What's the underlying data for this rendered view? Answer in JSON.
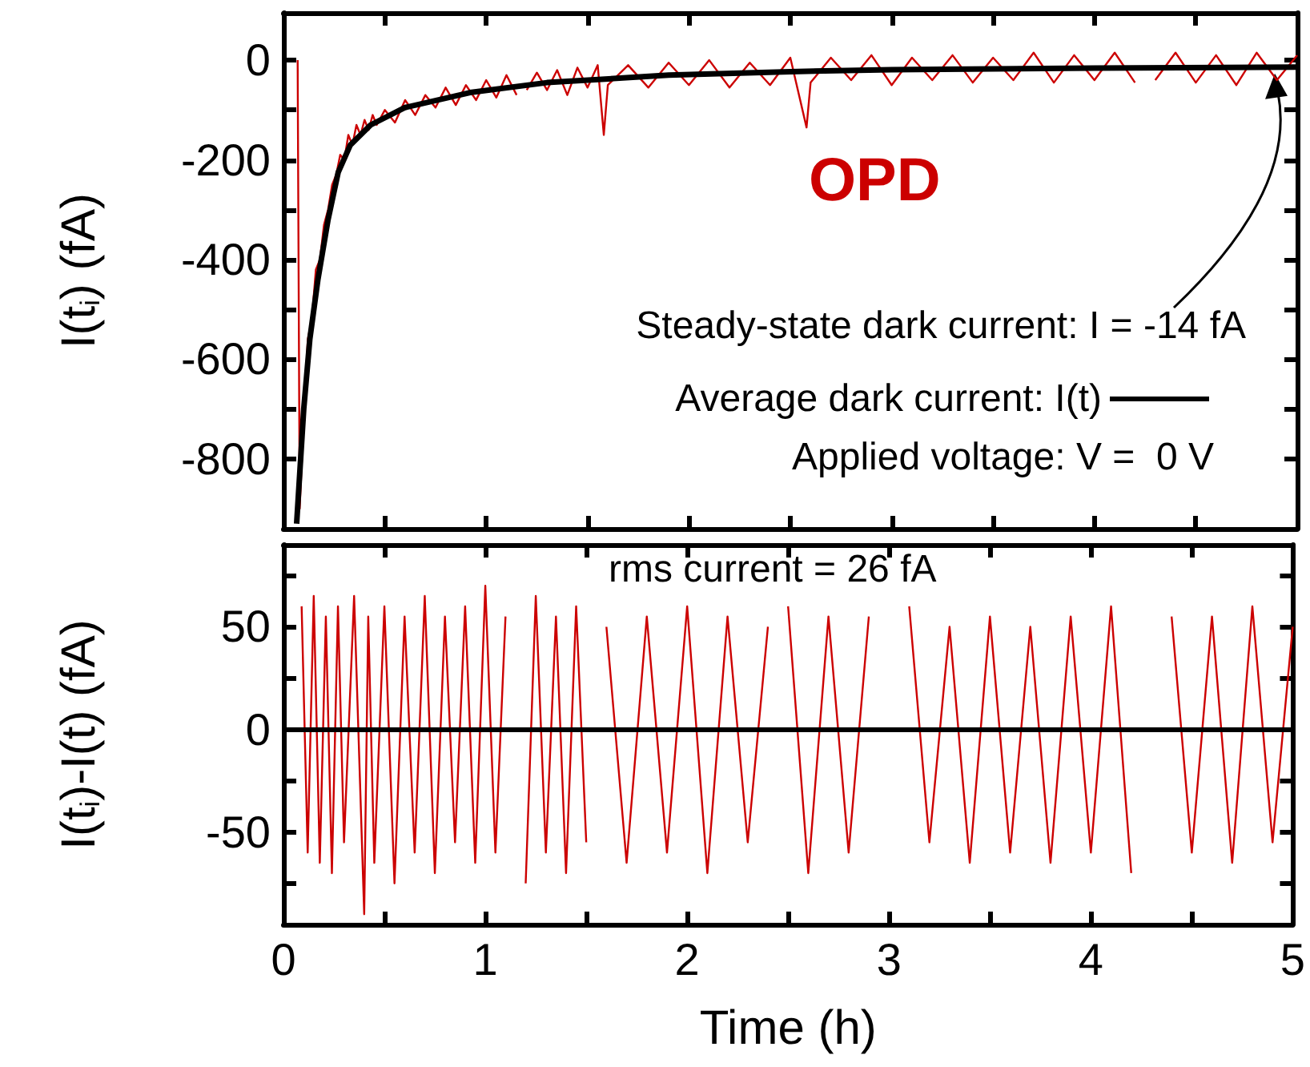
{
  "chart_data": [
    {
      "type": "line",
      "ylabel": "I(t$_{i}$) (fA)",
      "xlim": [
        0,
        5
      ],
      "xticks": [
        0,
        {
          "value": 0.5,
          "label": null
        },
        1,
        {
          "value": 1.5,
          "label": null
        },
        2,
        {
          "value": 2.5,
          "label": null
        },
        3,
        {
          "value": 3.5,
          "label": null
        },
        4,
        {
          "value": 4.5,
          "label": null
        },
        5
      ],
      "ylim": [
        -940,
        95
      ],
      "yticks": [
        -800,
        {
          "value": -700,
          "label": null
        },
        -600,
        {
          "value": -500,
          "label": null
        },
        -400,
        {
          "value": -300,
          "label": null
        },
        -200,
        {
          "value": -100,
          "label": null
        },
        0
      ],
      "tick_labels": "y",
      "marker": "none",
      "legend": "right",
      "annotations": [
        "OPD",
        "Steady-state dark current: I = -14 fA",
        "Applied voltage: V =  0 V"
      ],
      "series": [
        {
          "color": "#cc0000",
          "x": [
            0.07,
            0.08,
            0.1,
            0.12,
            0.14,
            0.16,
            0.18,
            0.2,
            0.22,
            0.24,
            0.26,
            0.28,
            0.3,
            0.32,
            0.34,
            0.36,
            0.38,
            0.4,
            0.42,
            0.44,
            0.46,
            0.5,
            0.55,
            0.6,
            0.65,
            0.7,
            0.75,
            0.8,
            0.85,
            0.9,
            0.95,
            1.0,
            1.05,
            1.1,
            1.15,
            1.17,
            1.2,
            1.25,
            1.3,
            1.35,
            1.4,
            1.45,
            1.5,
            1.55,
            1.58,
            1.6,
            1.7,
            1.8,
            1.9,
            2.0,
            2.1,
            2.2,
            2.3,
            2.4,
            2.5,
            2.58,
            2.6,
            2.7,
            2.8,
            2.9,
            3.0,
            3.1,
            3.2,
            3.3,
            3.4,
            3.5,
            3.6,
            3.7,
            3.8,
            3.9,
            4.0,
            4.1,
            4.2,
            4.27,
            4.3,
            4.4,
            4.5,
            4.6,
            4.7,
            4.8,
            4.9,
            5.0
          ],
          "values": [
            0,
            -900,
            -720,
            -560,
            -520,
            -420,
            -400,
            -330,
            -300,
            -250,
            -230,
            -190,
            -200,
            -150,
            -170,
            -130,
            -150,
            -120,
            -140,
            -110,
            -130,
            -100,
            -125,
            -80,
            -110,
            -70,
            -95,
            -55,
            -90,
            -50,
            -80,
            -40,
            -75,
            -30,
            -70,
            null,
            -60,
            -25,
            -60,
            -20,
            -70,
            -15,
            -55,
            -10,
            -150,
            -50,
            -10,
            -55,
            -5,
            -50,
            0,
            -55,
            -5,
            -50,
            5,
            -135,
            -45,
            5,
            -40,
            10,
            -50,
            5,
            -40,
            10,
            -45,
            5,
            -40,
            15,
            -45,
            10,
            -40,
            15,
            -45,
            null,
            -40,
            15,
            -45,
            10,
            -50,
            15,
            -40,
            10
          ]
        },
        {
          "name": "Average dark current: I(t)",
          "color": "#000000",
          "x": [
            0.065,
            0.1,
            0.13,
            0.17,
            0.22,
            0.27,
            0.33,
            0.43,
            0.6,
            0.92,
            1.3,
            1.9,
            2.5,
            3,
            4,
            5
          ],
          "values": [
            -930,
            -700,
            -560,
            -440,
            -320,
            -225,
            -170,
            -130,
            -95,
            -65,
            -45,
            -30,
            -23,
            -19,
            -16,
            -14
          ]
        }
      ]
    },
    {
      "type": "line",
      "ylabel": "I(t$_{i}$)-I(t) (fA)",
      "xlabel": "Time (h)",
      "xlim": [
        0,
        5
      ],
      "xticks": [
        0,
        {
          "value": 0.5,
          "label": null
        },
        1,
        {
          "value": 1.5,
          "label": null
        },
        2,
        {
          "value": 2.5,
          "label": null
        },
        3,
        {
          "value": 3.5,
          "label": null
        },
        4,
        {
          "value": 4.5,
          "label": null
        },
        5
      ],
      "ylim": [
        -95,
        90
      ],
      "yticks": [
        {
          "value": -75,
          "label": null
        },
        -50,
        {
          "value": -25,
          "label": null
        },
        0,
        {
          "value": 25,
          "label": null
        },
        50,
        {
          "value": 75,
          "label": null
        }
      ],
      "marker": "none",
      "annotations": [
        "rms current = 26 fA"
      ],
      "ref_lines": [
        {
          "axis": "y",
          "value": 0,
          "color": "#000000"
        }
      ],
      "series": [
        {
          "color": "#cc0000",
          "x": [
            0.09,
            0.12,
            0.15,
            0.18,
            0.21,
            0.24,
            0.27,
            0.3,
            0.35,
            0.4,
            0.42,
            0.45,
            0.5,
            0.55,
            0.6,
            0.65,
            0.7,
            0.75,
            0.8,
            0.85,
            0.9,
            0.95,
            1.0,
            1.05,
            1.1,
            1.17,
            1.2,
            1.25,
            1.3,
            1.35,
            1.4,
            1.45,
            1.5,
            1.58,
            1.6,
            1.7,
            1.8,
            1.9,
            2.0,
            2.1,
            2.2,
            2.3,
            2.4,
            2.47,
            2.5,
            2.6,
            2.7,
            2.8,
            2.9,
            3.0,
            3.1,
            3.2,
            3.3,
            3.4,
            3.5,
            3.6,
            3.7,
            3.8,
            3.9,
            4.0,
            4.1,
            4.2,
            4.27,
            4.3,
            4.4,
            4.5,
            4.6,
            4.7,
            4.8,
            4.9,
            5.0
          ],
          "values": [
            60,
            -60,
            65,
            -65,
            55,
            -70,
            60,
            -55,
            65,
            -90,
            55,
            -65,
            60,
            -75,
            55,
            -60,
            65,
            -70,
            55,
            -55,
            60,
            -65,
            70,
            -60,
            55,
            null,
            -75,
            65,
            -60,
            55,
            -70,
            60,
            -55,
            null,
            50,
            -65,
            55,
            -60,
            60,
            -70,
            55,
            -55,
            50,
            null,
            60,
            -70,
            55,
            -60,
            55,
            null,
            60,
            -55,
            50,
            -65,
            55,
            -60,
            50,
            -65,
            55,
            -60,
            60,
            -70,
            null,
            null,
            55,
            -60,
            55,
            -65,
            60,
            -55,
            50
          ]
        }
      ]
    }
  ]
}
